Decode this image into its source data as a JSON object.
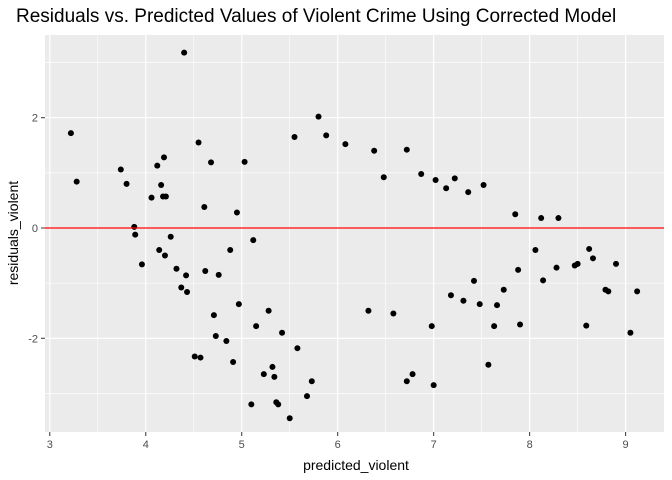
{
  "chart_data": {
    "type": "scatter",
    "title": "Residuals vs. Predicted Values of Violent Crime Using Corrected Model",
    "xlabel": "predicted_violent",
    "ylabel": "residuals_violent",
    "xlim": [
      2.95,
      9.4
    ],
    "ylim": [
      -3.7,
      3.5
    ],
    "xticks": [
      3,
      4,
      5,
      6,
      7,
      8,
      9
    ],
    "yticks": [
      -2,
      0,
      2
    ],
    "grid": true,
    "background": "#ebebeb",
    "grid_color": "#ffffff",
    "point_color": "#000000",
    "reference_line": {
      "y": 0,
      "color": "#ff0000"
    },
    "points": [
      [
        3.22,
        1.72
      ],
      [
        3.28,
        0.84
      ],
      [
        3.74,
        1.06
      ],
      [
        3.8,
        0.8
      ],
      [
        3.88,
        0.02
      ],
      [
        3.89,
        -0.12
      ],
      [
        3.96,
        -0.66
      ],
      [
        4.06,
        0.55
      ],
      [
        4.12,
        1.13
      ],
      [
        4.14,
        -0.4
      ],
      [
        4.16,
        0.78
      ],
      [
        4.18,
        0.57
      ],
      [
        4.19,
        1.28
      ],
      [
        4.2,
        -0.5
      ],
      [
        4.21,
        0.57
      ],
      [
        4.26,
        -0.16
      ],
      [
        4.32,
        -0.74
      ],
      [
        4.37,
        -1.08
      ],
      [
        4.4,
        3.18
      ],
      [
        4.42,
        -0.86
      ],
      [
        4.43,
        -1.16
      ],
      [
        4.51,
        -2.33
      ],
      [
        4.55,
        1.55
      ],
      [
        4.57,
        -2.35
      ],
      [
        4.61,
        0.38
      ],
      [
        4.62,
        -0.78
      ],
      [
        4.68,
        1.19
      ],
      [
        4.71,
        -1.58
      ],
      [
        4.73,
        -1.96
      ],
      [
        4.76,
        -0.85
      ],
      [
        4.84,
        -2.05
      ],
      [
        4.88,
        -0.4
      ],
      [
        4.91,
        -2.43
      ],
      [
        4.95,
        0.28
      ],
      [
        4.97,
        -1.38
      ],
      [
        5.03,
        1.2
      ],
      [
        5.1,
        -3.2
      ],
      [
        5.12,
        -0.22
      ],
      [
        5.15,
        -1.78
      ],
      [
        5.23,
        -2.65
      ],
      [
        5.28,
        -1.5
      ],
      [
        5.32,
        -2.52
      ],
      [
        5.34,
        -2.7
      ],
      [
        5.36,
        -3.16
      ],
      [
        5.38,
        -3.2
      ],
      [
        5.42,
        -1.9
      ],
      [
        5.5,
        -3.45
      ],
      [
        5.55,
        1.65
      ],
      [
        5.58,
        -2.18
      ],
      [
        5.68,
        -3.05
      ],
      [
        5.73,
        -2.78
      ],
      [
        5.8,
        2.02
      ],
      [
        5.88,
        1.68
      ],
      [
        6.08,
        1.52
      ],
      [
        6.32,
        -1.5
      ],
      [
        6.38,
        1.4
      ],
      [
        6.48,
        0.92
      ],
      [
        6.58,
        -1.55
      ],
      [
        6.72,
        1.42
      ],
      [
        6.72,
        -2.78
      ],
      [
        6.78,
        -2.65
      ],
      [
        6.87,
        0.98
      ],
      [
        6.98,
        -1.78
      ],
      [
        7.0,
        -2.85
      ],
      [
        7.02,
        0.87
      ],
      [
        7.13,
        0.72
      ],
      [
        7.18,
        -1.22
      ],
      [
        7.22,
        0.9
      ],
      [
        7.31,
        -1.32
      ],
      [
        7.36,
        0.65
      ],
      [
        7.42,
        -0.96
      ],
      [
        7.48,
        -1.38
      ],
      [
        7.52,
        0.78
      ],
      [
        7.57,
        -2.48
      ],
      [
        7.63,
        -1.78
      ],
      [
        7.66,
        -1.4
      ],
      [
        7.73,
        -1.12
      ],
      [
        7.85,
        0.25
      ],
      [
        7.88,
        -0.76
      ],
      [
        7.9,
        -1.75
      ],
      [
        8.06,
        -0.4
      ],
      [
        8.12,
        0.18
      ],
      [
        8.14,
        -0.95
      ],
      [
        8.28,
        -0.72
      ],
      [
        8.3,
        0.18
      ],
      [
        8.47,
        -0.68
      ],
      [
        8.5,
        -0.65
      ],
      [
        8.59,
        -1.77
      ],
      [
        8.62,
        -0.38
      ],
      [
        8.66,
        -0.55
      ],
      [
        8.79,
        -1.12
      ],
      [
        8.82,
        -1.15
      ],
      [
        8.9,
        -0.65
      ],
      [
        9.05,
        -1.9
      ],
      [
        9.12,
        -1.15
      ]
    ]
  }
}
